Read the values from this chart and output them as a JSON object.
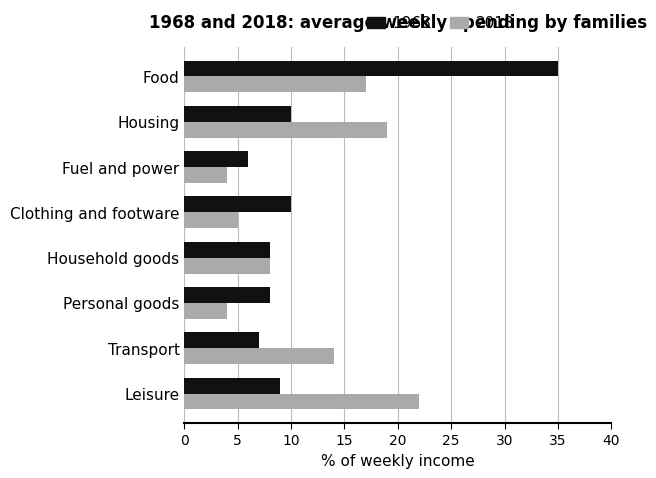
{
  "title": "1968 and 2018: average weekly spending by families",
  "categories": [
    "Leisure",
    "Transport",
    "Personal goods",
    "Household goods",
    "Clothing and footware",
    "Fuel and power",
    "Housing",
    "Food"
  ],
  "values_1968": [
    9,
    7,
    8,
    8,
    10,
    6,
    10,
    35
  ],
  "values_2018": [
    22,
    14,
    4,
    8,
    5,
    4,
    19,
    17
  ],
  "color_1968": "#111111",
  "color_2018": "#aaaaaa",
  "xlabel": "% of weekly income",
  "xlim": [
    0,
    40
  ],
  "xticks": [
    0,
    5,
    10,
    15,
    20,
    25,
    30,
    35,
    40
  ],
  "legend_labels": [
    "1968",
    "2018"
  ],
  "bar_height": 0.35,
  "background_color": "#ffffff",
  "grid_color": "#bbbbbb",
  "ytick_labels": [
    "Leisure",
    "Transport",
    "Personal goods",
    "Household goods",
    "Clothing and footware",
    "Fuel and power",
    "Housing",
    "Food"
  ]
}
